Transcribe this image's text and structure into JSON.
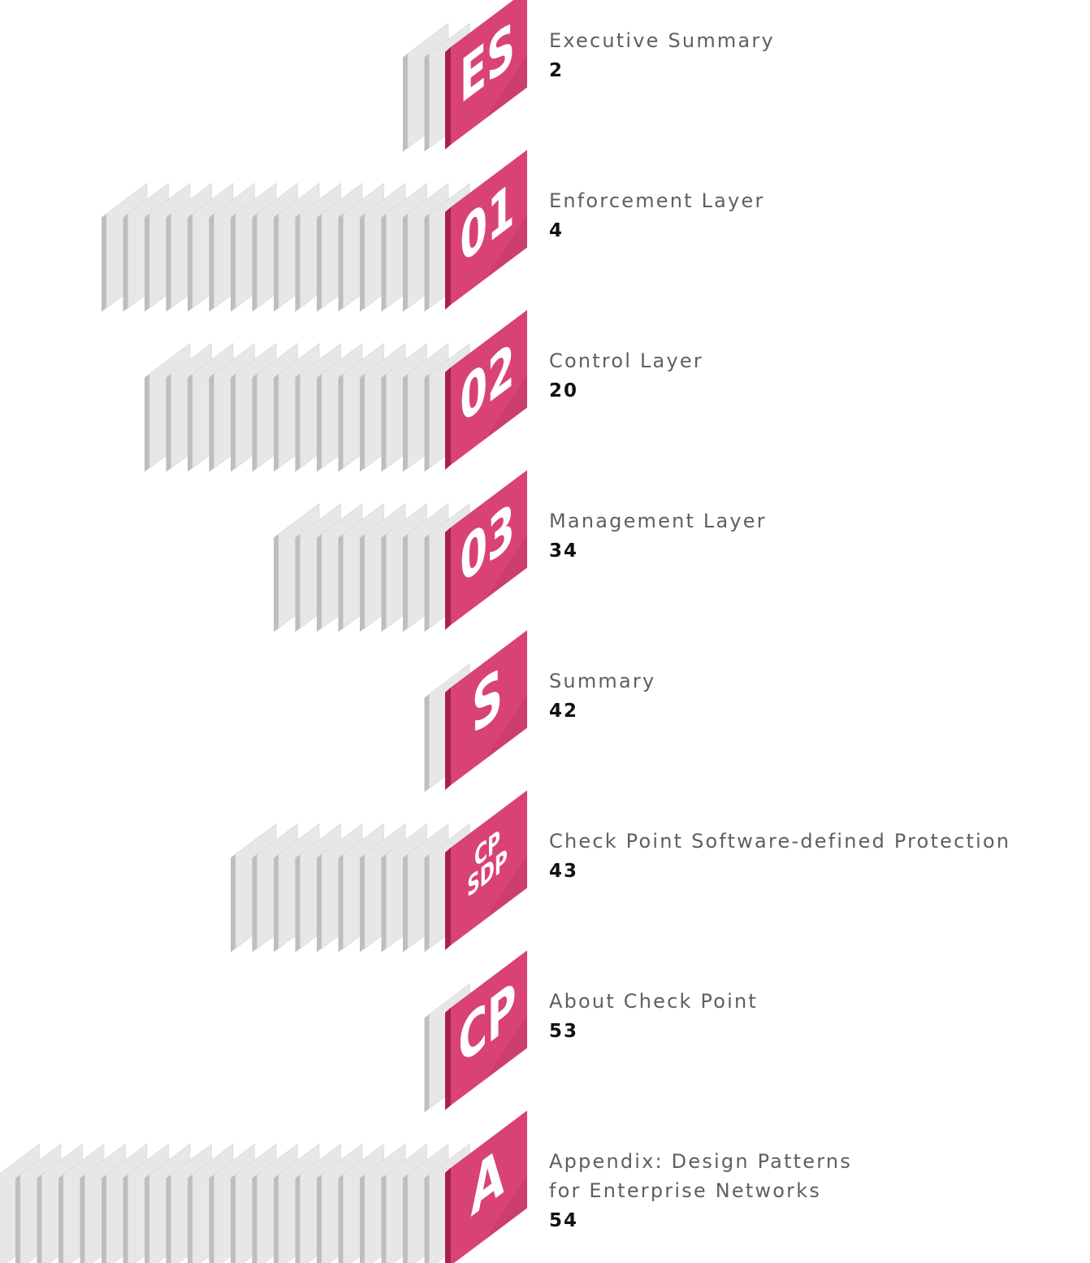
{
  "colors": {
    "accent": "#d94277",
    "accent_dark": "#a8204f",
    "accent_top": "#7c1638",
    "page_front": "#e7e7e8",
    "page_side": "#bebebf",
    "page_top": "#a6a6a8",
    "title_text": "#5e5f61",
    "page_number_text": "#111111"
  },
  "toc": [
    {
      "badge": [
        "ES"
      ],
      "title": "Executive Summary",
      "page": "2",
      "stack_pages": 2
    },
    {
      "badge": [
        "01"
      ],
      "title": "Enforcement Layer",
      "page": "4",
      "stack_pages": 16
    },
    {
      "badge": [
        "02"
      ],
      "title": "Control Layer",
      "page": "20",
      "stack_pages": 14
    },
    {
      "badge": [
        "03"
      ],
      "title": "Management Layer",
      "page": "34",
      "stack_pages": 8
    },
    {
      "badge": [
        "S"
      ],
      "title": "Summary",
      "page": "42",
      "stack_pages": 1
    },
    {
      "badge": [
        "CP",
        "SDP"
      ],
      "title": "Check Point Software-defined Protection",
      "page": "43",
      "stack_pages": 10
    },
    {
      "badge": [
        "CP"
      ],
      "title": "About Check Point",
      "page": "53",
      "stack_pages": 1
    },
    {
      "badge": [
        "A"
      ],
      "title": "Appendix: Design Patterns\nfor Enterprise Networks",
      "page": "54",
      "stack_pages": 21
    }
  ]
}
